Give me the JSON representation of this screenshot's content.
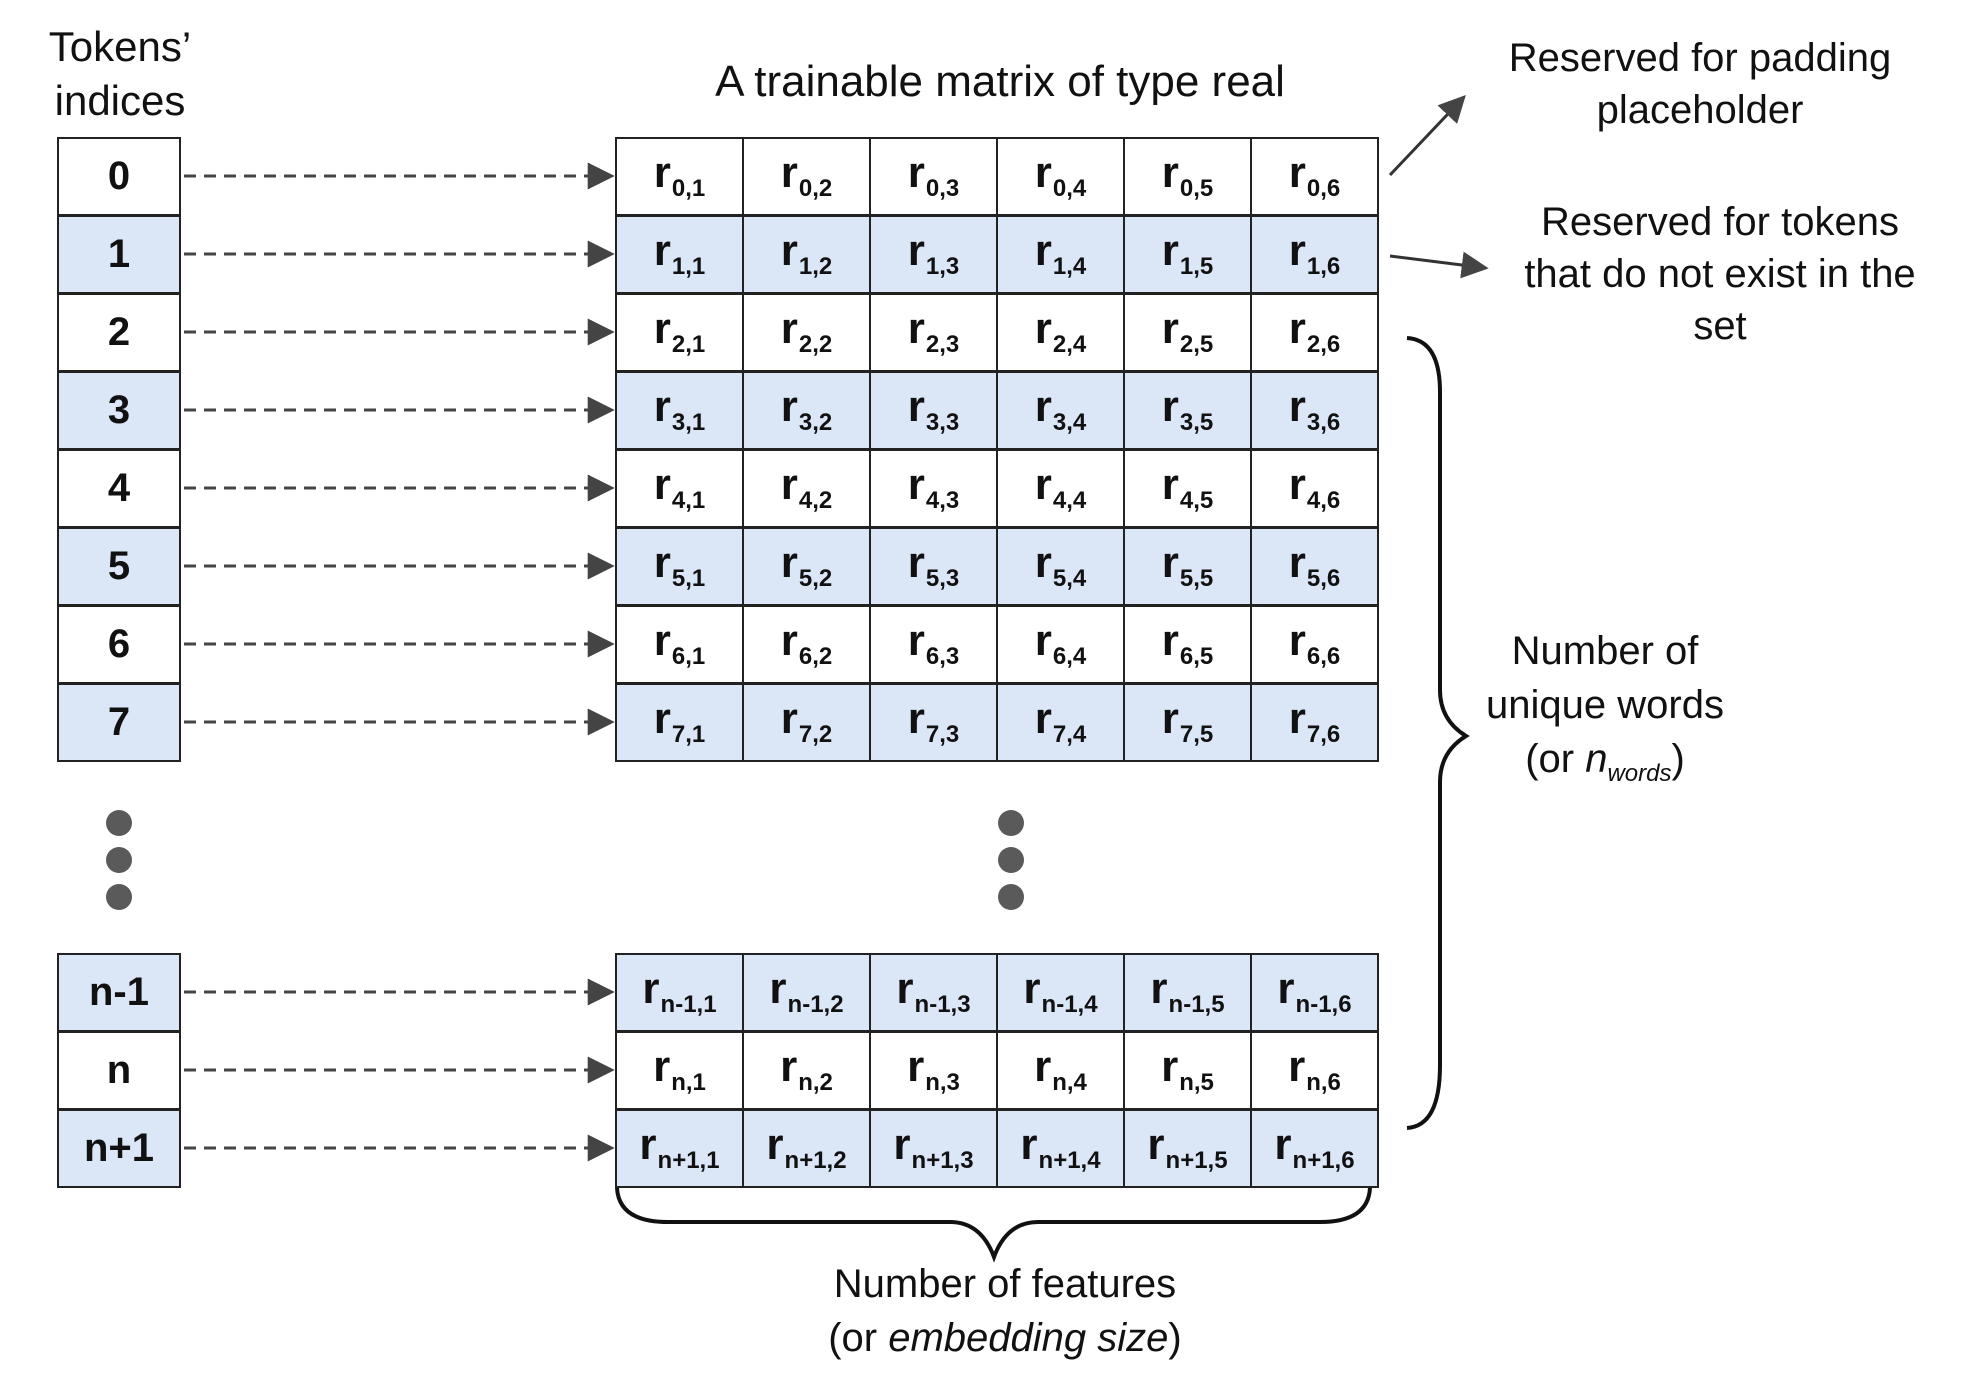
{
  "title": "A trainable matrix of type real",
  "left_label": [
    "Tokens’",
    "indices"
  ],
  "top_rows": [
    {
      "index": "0",
      "cells": [
        "0,1",
        "0,2",
        "0,3",
        "0,4",
        "0,5",
        "0,6"
      ],
      "shade": false
    },
    {
      "index": "1",
      "cells": [
        "1,1",
        "1,2",
        "1,3",
        "1,4",
        "1,5",
        "1,6"
      ],
      "shade": true
    },
    {
      "index": "2",
      "cells": [
        "2,1",
        "2,2",
        "2,3",
        "2,4",
        "2,5",
        "2,6"
      ],
      "shade": false
    },
    {
      "index": "3",
      "cells": [
        "3,1",
        "3,2",
        "3,3",
        "3,4",
        "3,5",
        "3,6"
      ],
      "shade": true
    },
    {
      "index": "4",
      "cells": [
        "4,1",
        "4,2",
        "4,3",
        "4,4",
        "4,5",
        "4,6"
      ],
      "shade": false
    },
    {
      "index": "5",
      "cells": [
        "5,1",
        "5,2",
        "5,3",
        "5,4",
        "5,5",
        "5,6"
      ],
      "shade": true
    },
    {
      "index": "6",
      "cells": [
        "6,1",
        "6,2",
        "6,3",
        "6,4",
        "6,5",
        "6,6"
      ],
      "shade": false
    },
    {
      "index": "7",
      "cells": [
        "7,1",
        "7,2",
        "7,3",
        "7,4",
        "7,5",
        "7,6"
      ],
      "shade": true
    }
  ],
  "bottom_rows": [
    {
      "index": "n-1",
      "cells": [
        "n-1,1",
        "n-1,2",
        "n-1,3",
        "n-1,4",
        "n-1,5",
        "n-1,6"
      ],
      "shade": true
    },
    {
      "index": "n",
      "cells": [
        "n,1",
        "n,2",
        "n,3",
        "n,4",
        "n,5",
        "n,6"
      ],
      "shade": false
    },
    {
      "index": "n+1",
      "cells": [
        "n+1,1",
        "n+1,2",
        "n+1,3",
        "n+1,4",
        "n+1,5",
        "n+1,6"
      ],
      "shade": true
    }
  ],
  "cell_letter": "r",
  "annotations": {
    "padding": [
      "Reserved for padding",
      "placeholder"
    ],
    "unknown": [
      "Reserved for tokens",
      "that do not exist in the",
      "set"
    ],
    "unique_words": {
      "line1": "Number of",
      "line2": "unique words",
      "prefix": "(or ",
      "var": "n",
      "sub": "words",
      "suffix": ")"
    },
    "features": {
      "line1": "Number of features",
      "prefix": "(or ",
      "emph": "embedding size",
      "suffix": ")"
    }
  },
  "colors": {
    "shade": "#dbe6f7",
    "border": "#222222",
    "dots": "#5a5a5a",
    "arrow": "#444444"
  }
}
